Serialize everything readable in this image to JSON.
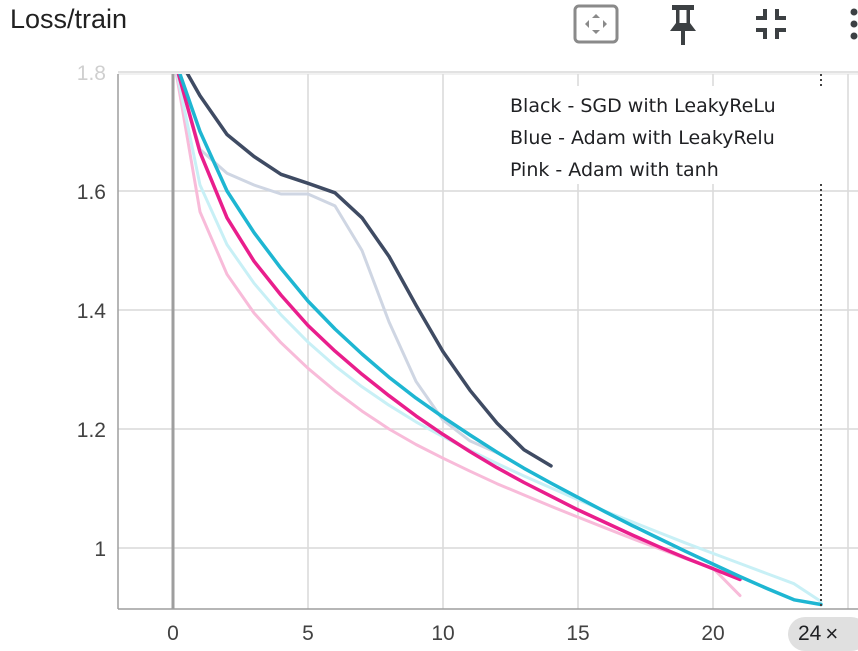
{
  "header": {
    "title": "Loss/train",
    "icons": [
      "fit-domain-icon",
      "pin-icon",
      "collapse-icon",
      "more-icon"
    ]
  },
  "hover": {
    "step_label": "24",
    "close_glyph": "×"
  },
  "chart_data": {
    "type": "line",
    "title": "Loss/train",
    "xlabel": "",
    "ylabel": "",
    "xlim": [
      -2,
      25
    ],
    "ylim": [
      0.9,
      1.8
    ],
    "xticks": [
      0,
      5,
      10,
      15,
      20
    ],
    "yticks": [
      1,
      1.2,
      1.4,
      1.6,
      1.8
    ],
    "ytick_labels": [
      "1",
      "1.2",
      "1.4",
      "1.6",
      "1.8"
    ],
    "grid": true,
    "hover_x": 24,
    "annotation": [
      "Black - SGD with LeakyReLu",
      "Blue - Adam with LeakyRelu",
      "Pink - Adam with tanh"
    ],
    "series": [
      {
        "color": "#f8bbd9",
        "width": 3,
        "x": [
          0,
          1,
          2,
          3,
          4,
          5,
          6,
          7,
          8,
          9,
          10,
          11,
          12,
          13,
          14,
          15,
          16,
          17,
          18,
          19,
          20,
          21
        ],
        "y": [
          1.83,
          1.565,
          1.46,
          1.395,
          1.345,
          1.302,
          1.264,
          1.23,
          1.2,
          1.174,
          1.151,
          1.129,
          1.108,
          1.089,
          1.07,
          1.052,
          1.034,
          1.016,
          0.999,
          0.982,
          0.966,
          0.92
        ]
      },
      {
        "color": "#c8f0f6",
        "width": 3,
        "x": [
          0,
          1,
          2,
          3,
          4,
          5,
          6,
          7,
          8,
          9,
          10,
          11,
          12,
          13,
          14,
          15,
          16,
          17,
          18,
          19,
          20,
          21,
          22,
          23,
          24
        ],
        "y": [
          1.83,
          1.61,
          1.51,
          1.445,
          1.392,
          1.346,
          1.306,
          1.271,
          1.24,
          1.212,
          1.187,
          1.164,
          1.142,
          1.121,
          1.101,
          1.081,
          1.062,
          1.044,
          1.026,
          1.008,
          0.991,
          0.974,
          0.957,
          0.94,
          0.91
        ]
      },
      {
        "color": "#cfd6e3",
        "width": 3,
        "x": [
          0,
          1,
          2,
          3,
          4,
          5,
          6,
          7,
          8,
          9,
          10,
          11,
          12
        ],
        "y": [
          1.83,
          1.67,
          1.63,
          1.61,
          1.595,
          1.595,
          1.575,
          1.5,
          1.38,
          1.28,
          1.215,
          1.18,
          1.16
        ]
      },
      {
        "color": "#e91e8c",
        "width": 3.5,
        "x": [
          0,
          1,
          2,
          3,
          4,
          5,
          6,
          7,
          8,
          9,
          10,
          11,
          12,
          13,
          14,
          15,
          16,
          17,
          18,
          19,
          20,
          21
        ],
        "y": [
          1.83,
          1.665,
          1.555,
          1.482,
          1.425,
          1.374,
          1.331,
          1.292,
          1.256,
          1.222,
          1.191,
          1.162,
          1.135,
          1.11,
          1.087,
          1.064,
          1.043,
          1.022,
          1.002,
          0.983,
          0.965,
          0.947
        ]
      },
      {
        "color": "#1eb6d2",
        "width": 3.5,
        "x": [
          0,
          1,
          2,
          3,
          4,
          5,
          6,
          7,
          8,
          9,
          10,
          11,
          12,
          13,
          14,
          15,
          16,
          17,
          18,
          19,
          20,
          21,
          22,
          23,
          24
        ],
        "y": [
          1.83,
          1.7,
          1.6,
          1.53,
          1.47,
          1.415,
          1.368,
          1.326,
          1.287,
          1.252,
          1.22,
          1.19,
          1.161,
          1.134,
          1.109,
          1.085,
          1.061,
          1.038,
          1.016,
          0.994,
          0.973,
          0.952,
          0.932,
          0.913,
          0.905
        ]
      },
      {
        "color": "#3f4b63",
        "width": 3.5,
        "x": [
          0,
          0.5,
          1,
          2,
          3,
          4,
          5,
          6,
          7,
          8,
          9,
          10,
          11,
          12,
          13,
          14
        ],
        "y": [
          1.87,
          1.8,
          1.76,
          1.695,
          1.658,
          1.628,
          1.613,
          1.597,
          1.555,
          1.49,
          1.408,
          1.33,
          1.265,
          1.21,
          1.165,
          1.138
        ]
      }
    ]
  }
}
